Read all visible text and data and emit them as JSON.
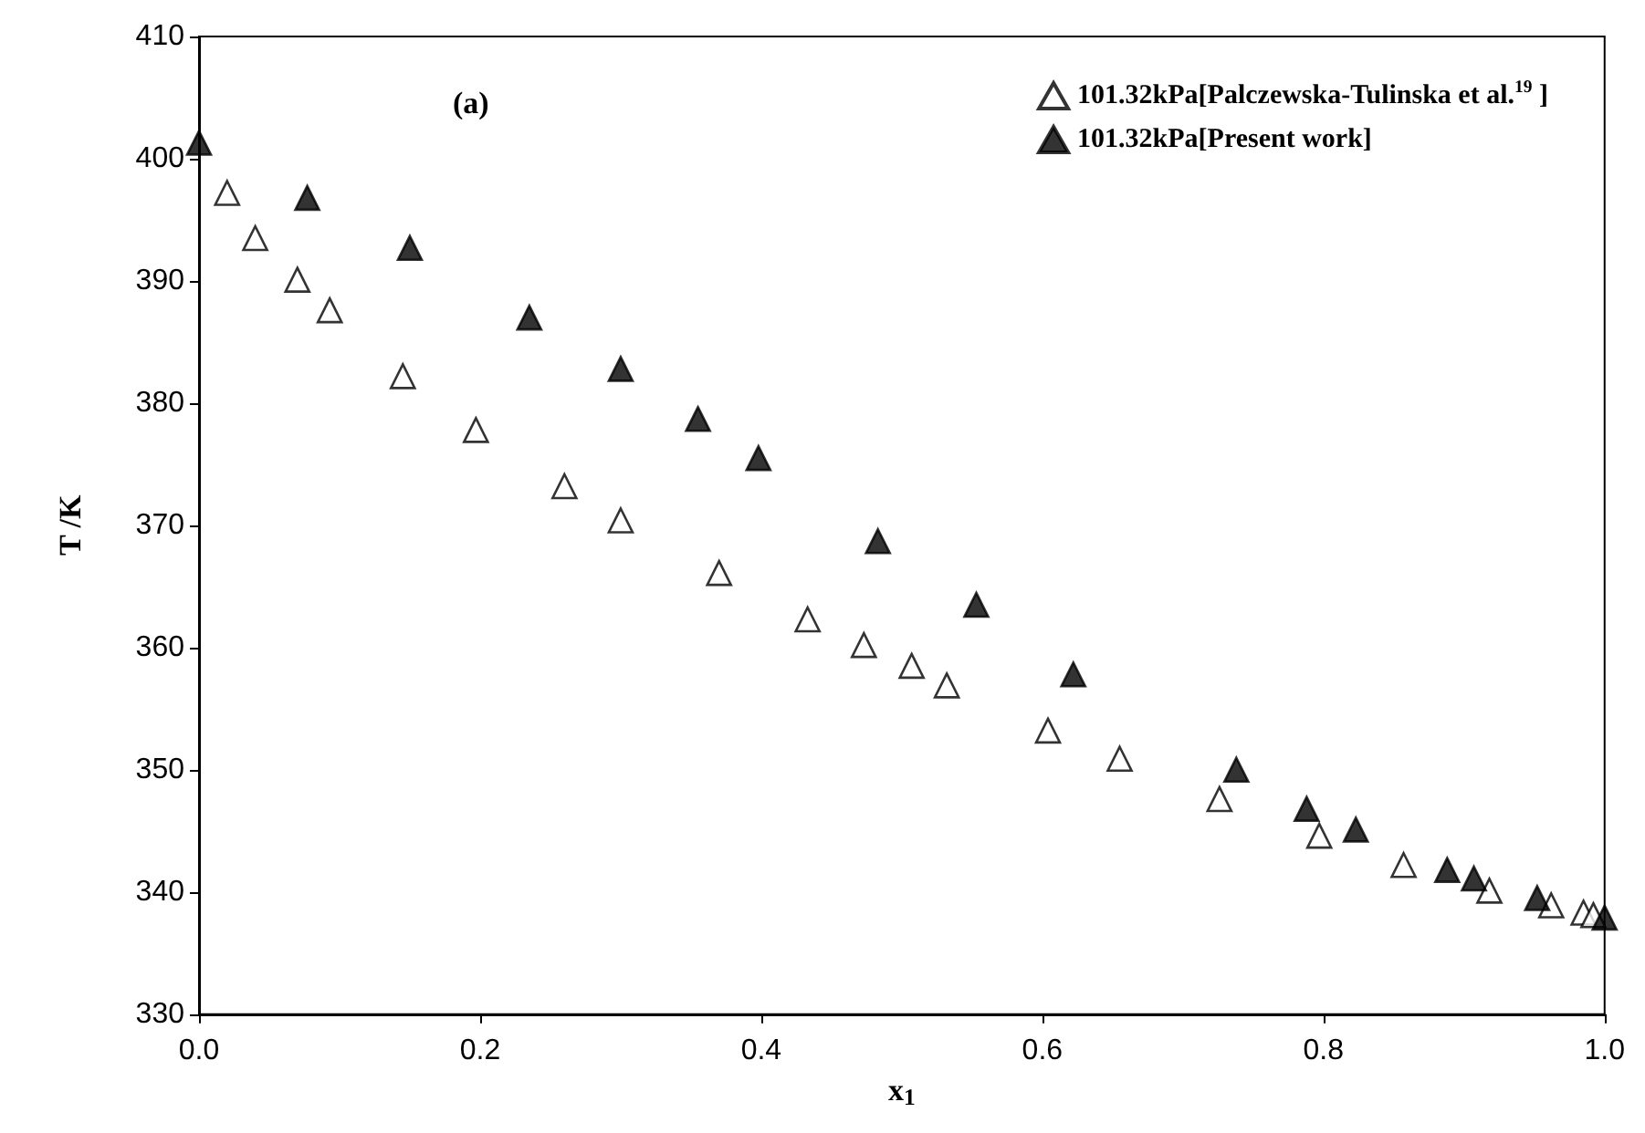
{
  "chart_data": {
    "type": "scatter",
    "xlabel": "x$_{1}$",
    "ylabel": "T /K",
    "annotations": [
      "(a)"
    ],
    "xlim": [
      0,
      1
    ],
    "xticks": [
      {
        "value": 0,
        "label": "0.0"
      },
      {
        "value": 0.2,
        "label": "0.2"
      },
      {
        "value": 0.4,
        "label": "0.4"
      },
      {
        "value": 0.6,
        "label": "0.6"
      },
      {
        "value": 0.8,
        "label": "0.8"
      },
      {
        "value": 1,
        "label": "1.0"
      }
    ],
    "ylim": [
      330,
      410
    ],
    "yticks": [
      330,
      340,
      350,
      360,
      370,
      380,
      390,
      400,
      410
    ],
    "grid": false,
    "legend": "top right",
    "marker": "triangle",
    "series": [
      {
        "name": "101.32kPa[Palczewska-Tulinska et al.$^{19}$ ]",
        "color": "#ffffff",
        "x": [
          0.02,
          0.04,
          0.07,
          0.093,
          0.145,
          0.197,
          0.26,
          0.3,
          0.37,
          0.433,
          0.473,
          0.507,
          0.532,
          0.604,
          0.655,
          0.726,
          0.797,
          0.857,
          0.918,
          0.962,
          0.985,
          0.992
        ],
        "values": [
          397.2,
          393.5,
          390.1,
          387.6,
          382.2,
          377.8,
          373.2,
          370.4,
          366.1,
          362.3,
          360.2,
          358.5,
          356.9,
          353.2,
          350.9,
          347.6,
          344.6,
          342.2,
          340.1,
          338.9,
          338.3,
          338.1
        ]
      },
      {
        "name": "101.32kPa[Present work]",
        "color": "#000000",
        "x": [
          0,
          0.077,
          0.15,
          0.235,
          0.3,
          0.355,
          0.398,
          0.483,
          0.553,
          0.622,
          0.738,
          0.788,
          0.823,
          0.888,
          0.907,
          0.952,
          1.0
        ],
        "values": [
          401.3,
          396.8,
          392.7,
          387.0,
          382.8,
          378.7,
          375.5,
          368.7,
          363.5,
          357.8,
          350.0,
          346.8,
          345.1,
          341.8,
          341.1,
          339.5,
          337.9
        ]
      }
    ]
  }
}
